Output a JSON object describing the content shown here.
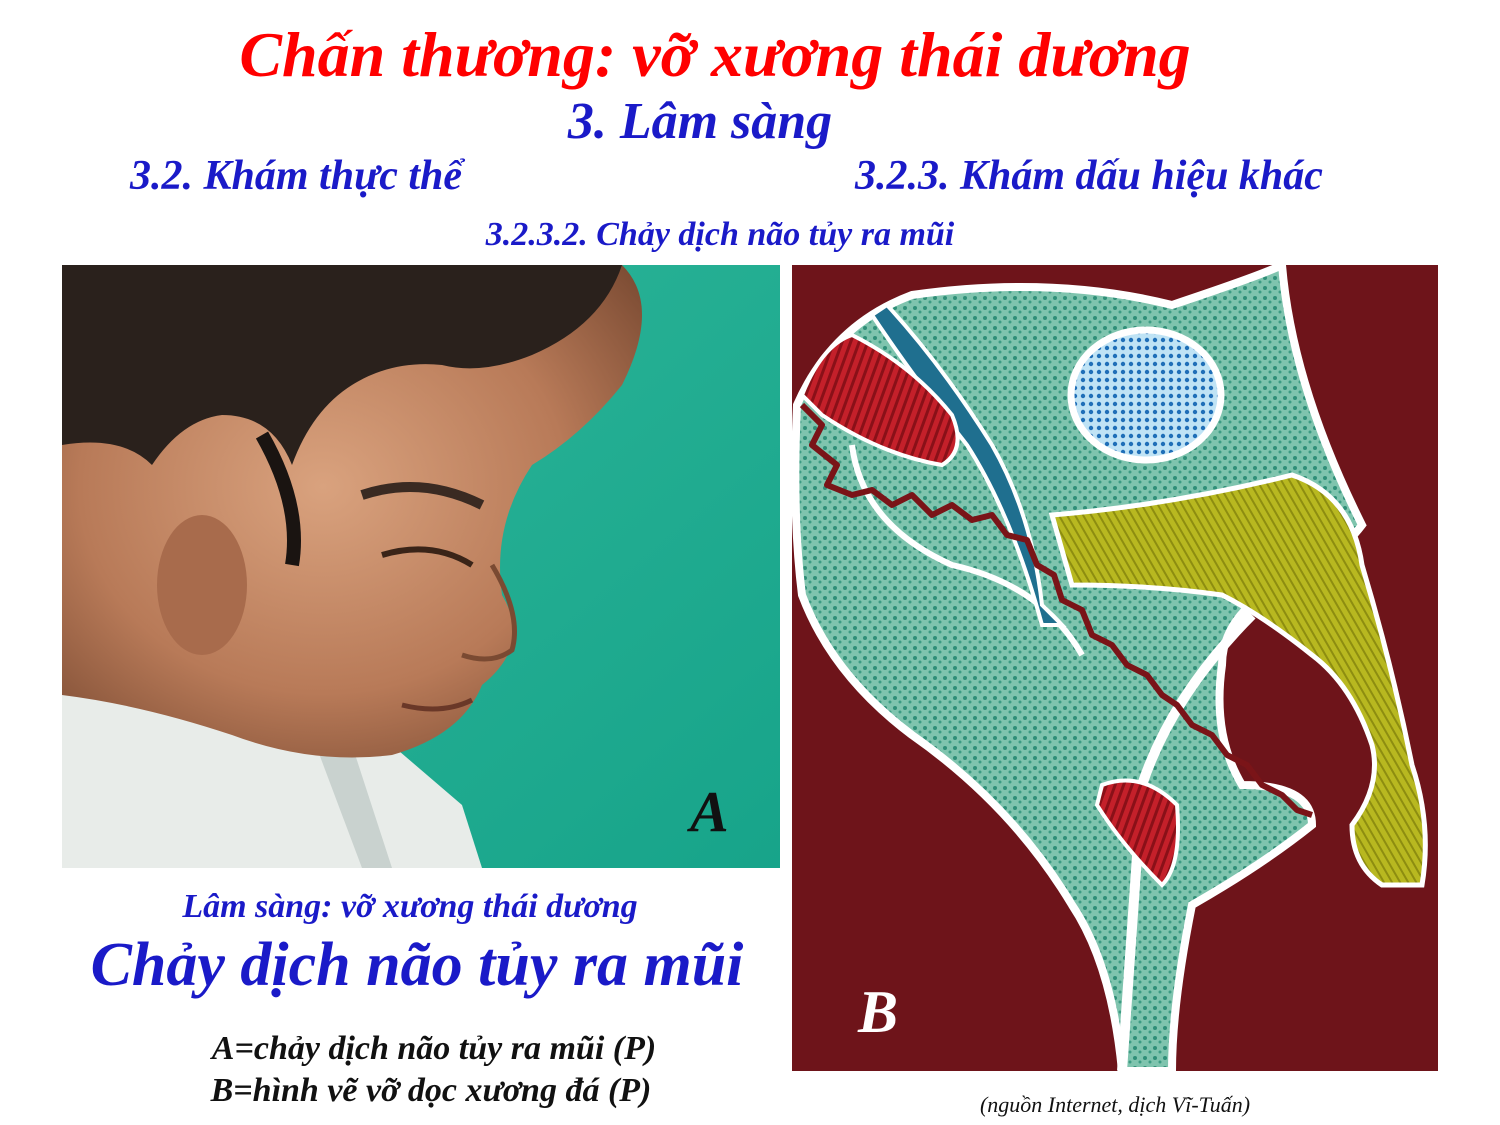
{
  "title": "Chấn thương: vỡ xương thái dương",
  "section": "3. Lâm sàng",
  "subsection_left": "3.2. Khám thực thể",
  "subsection_right": "3.2.3. Khám dấu hiệu khác",
  "subsubsection": "3.2.3.2. Chảy dịch não tủy ra mũi",
  "figure_a": {
    "label": "A"
  },
  "figure_b": {
    "label": "B"
  },
  "caption": {
    "line1": "Lâm sàng: vỡ xương thái dương",
    "line2": "Chảy dịch não tủy ra mũi",
    "line3": "A=chảy dịch não tủy ra mũi (P)",
    "line4": "B=hình vẽ vỡ dọc xương đá (P)"
  },
  "source": "(nguồn Internet, dịch Vĩ-Tuấn)",
  "colors": {
    "title": "#ff0000",
    "headings": "#1a1ac8",
    "diagram_background": "#6e141a",
    "bone_green": "#5fb8a0",
    "canal_blue": "#1f6f8f",
    "muscle_red": "#c0202a",
    "yellow_green": "#b4b41e"
  }
}
